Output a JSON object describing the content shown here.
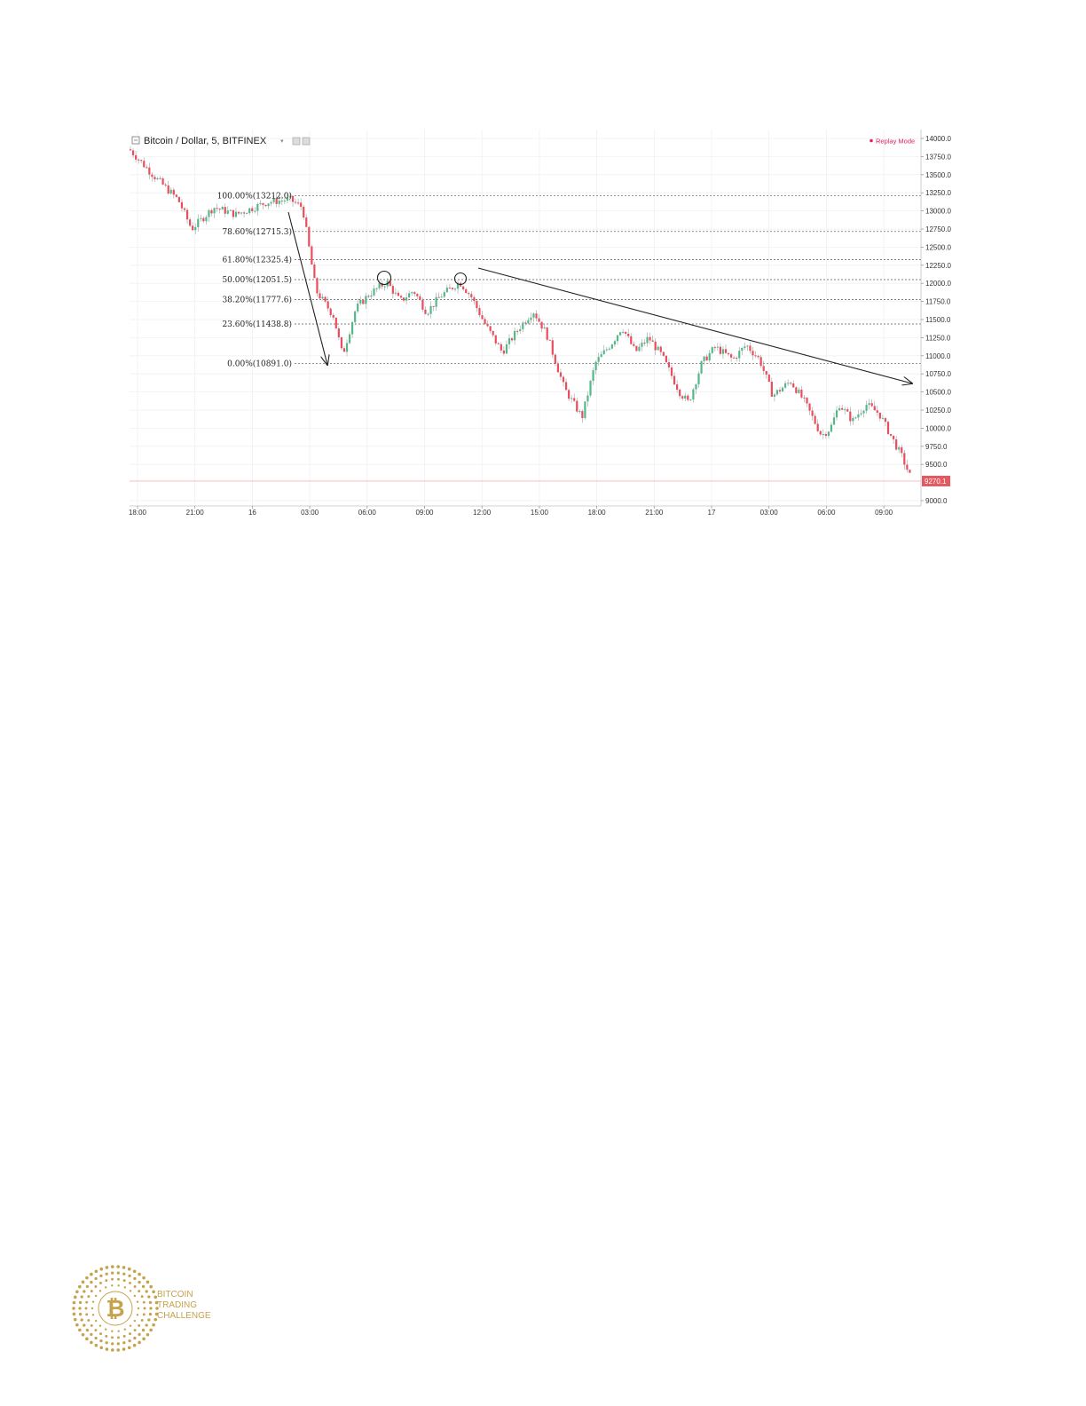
{
  "chart_data": {
    "type": "candlestick",
    "title": "Bitcoin / Dollar, 5, BITFINEX",
    "mode_label": "Replay Mode",
    "ylim": [
      9000,
      14000
    ],
    "y_ticks": [
      14000,
      13750,
      13500,
      13250,
      13000,
      12750,
      12500,
      12250,
      12000,
      11750,
      11500,
      11250,
      11000,
      10750,
      10500,
      10250,
      10000,
      9750,
      9500,
      9000
    ],
    "y_tick_labels": [
      "14000.0",
      "13750.0",
      "13500.0",
      "13250.0",
      "13000.0",
      "12750.0",
      "12500.0",
      "12250.0",
      "12000.0",
      "11750.0",
      "11500.0",
      "11250.0",
      "11000.0",
      "10750.0",
      "10500.0",
      "10250.0",
      "10000.0",
      "9750.0",
      "9500.0",
      "9000.0"
    ],
    "x_tick_labels": [
      "18:00",
      "21:00",
      "16",
      "03:00",
      "06:00",
      "09:00",
      "12:00",
      "15:00",
      "18:00",
      "21:00",
      "17",
      "03:00",
      "06:00",
      "09:00"
    ],
    "last_price": 9270.1,
    "last_price_label": "9270.1",
    "price_path": [
      [
        0,
        13850
      ],
      [
        30,
        13450
      ],
      [
        55,
        13150
      ],
      [
        70,
        12750
      ],
      [
        95,
        13050
      ],
      [
        120,
        12950
      ],
      [
        155,
        13120
      ],
      [
        180,
        13160
      ],
      [
        195,
        13050
      ],
      [
        210,
        11900
      ],
      [
        230,
        11550
      ],
      [
        240,
        11000
      ],
      [
        255,
        11650
      ],
      [
        270,
        11850
      ],
      [
        290,
        12020
      ],
      [
        305,
        11750
      ],
      [
        320,
        11900
      ],
      [
        335,
        11600
      ],
      [
        350,
        11820
      ],
      [
        372,
        12020
      ],
      [
        385,
        11820
      ],
      [
        400,
        11450
      ],
      [
        420,
        11050
      ],
      [
        440,
        11400
      ],
      [
        455,
        11620
      ],
      [
        470,
        11300
      ],
      [
        490,
        10550
      ],
      [
        510,
        10150
      ],
      [
        525,
        10900
      ],
      [
        545,
        11200
      ],
      [
        555,
        11400
      ],
      [
        570,
        11050
      ],
      [
        585,
        11250
      ],
      [
        600,
        11000
      ],
      [
        620,
        10500
      ],
      [
        630,
        10350
      ],
      [
        645,
        10900
      ],
      [
        660,
        11120
      ],
      [
        680,
        10950
      ],
      [
        695,
        11150
      ],
      [
        710,
        10950
      ],
      [
        725,
        10450
      ],
      [
        745,
        10650
      ],
      [
        760,
        10380
      ],
      [
        780,
        9900
      ],
      [
        790,
        10000
      ],
      [
        800,
        10330
      ],
      [
        815,
        10100
      ],
      [
        830,
        10330
      ],
      [
        845,
        10200
      ],
      [
        860,
        9850
      ],
      [
        870,
        9620
      ],
      [
        882,
        9270
      ]
    ],
    "fibonacci_levels": [
      {
        "label": "100.00%(13212.0)",
        "value": 13212.0
      },
      {
        "label": "78.60%(12715.3)",
        "value": 12715.3
      },
      {
        "label": "61.80%(12325.4)",
        "value": 12325.4
      },
      {
        "label": "50.00%(12051.5)",
        "value": 12051.5
      },
      {
        "label": "38.20%(11777.6)",
        "value": 11777.6
      },
      {
        "label": "23.60%(11438.8)",
        "value": 11438.8
      },
      {
        "label": "0.00%(10891.0)",
        "value": 10891.0
      }
    ],
    "colors": {
      "up": "#53b987",
      "down": "#eb4d5c",
      "last_price_bg": "#e15a62",
      "grid": "#eef0f3",
      "fib_line": "#555555",
      "replay": "#e0245e"
    }
  },
  "logo": {
    "line1": "BITCOIN",
    "line2": "TRADING",
    "line3": "CHALLENGE",
    "symbol": "₿",
    "color": "#c5a24c"
  }
}
